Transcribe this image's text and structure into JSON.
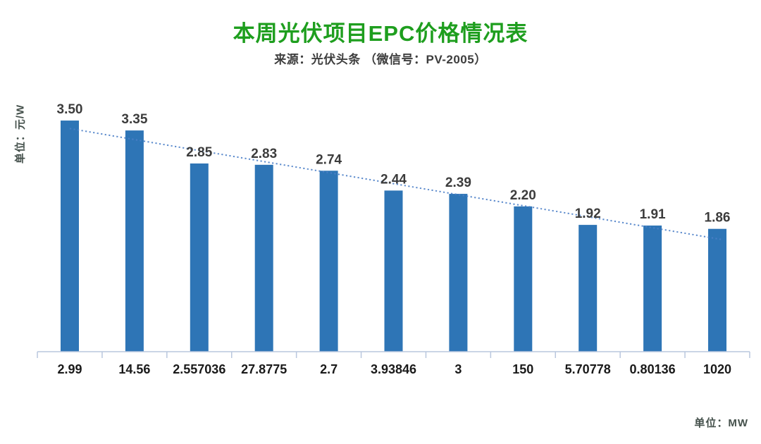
{
  "header": {
    "title": "本周光伏项目EPC价格情况表",
    "subtitle": "来源：光伏头条 （微信号：PV-2005）"
  },
  "axes": {
    "y_unit": "单位：元/W",
    "x_unit": "单位：MW"
  },
  "colors": {
    "title_green": "#1e9e1e",
    "bar_blue": "#2e75b6",
    "trend_blue": "#4d80c8",
    "axis_line": "#b9c7de",
    "value_label": "#3c3c3c",
    "x_label": "#1a1a1a"
  },
  "chart_data": {
    "type": "bar",
    "title": "本周光伏项目EPC价格情况表",
    "subtitle": "来源：光伏头条 （微信号：PV-2005）",
    "ylabel": "单位：元/W",
    "xlabel": "单位：MW",
    "categories": [
      "2.99",
      "14.56",
      "2.557036",
      "27.8775",
      "2.7",
      "3.93846",
      "3",
      "150",
      "5.70778",
      "0.80136",
      "1020"
    ],
    "values": [
      3.5,
      3.35,
      2.85,
      2.83,
      2.74,
      2.44,
      2.39,
      2.2,
      1.92,
      1.91,
      1.86
    ],
    "value_labels": [
      "3.50",
      "3.35",
      "2.85",
      "2.83",
      "2.74",
      "2.44",
      "2.39",
      "2.20",
      "1.92",
      "1.91",
      "1.86"
    ],
    "ylim": [
      0,
      3.9
    ],
    "grid": false,
    "legend": false,
    "trendline": "linear-dotted"
  }
}
